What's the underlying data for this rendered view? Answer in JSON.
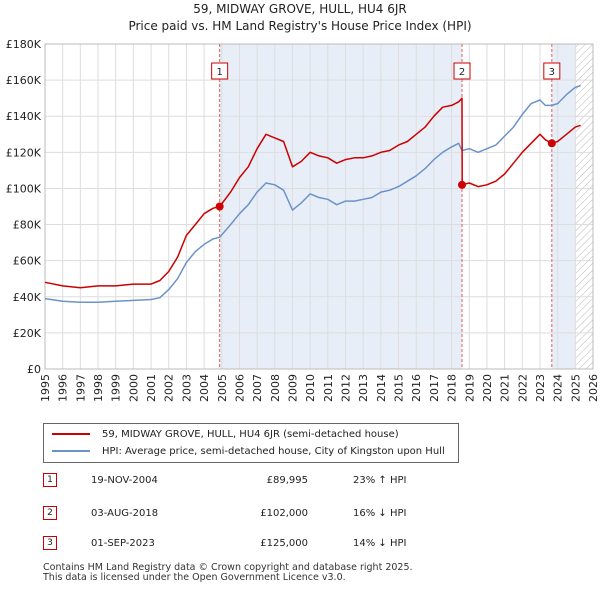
{
  "title_line1": "59, MIDWAY GROVE, HULL, HU4 6JR",
  "title_line2": "Price paid vs. HM Land Registry's House Price Index (HPI)",
  "chart_data": {
    "type": "line",
    "title": "59, MIDWAY GROVE, HULL, HU4 6JR",
    "subtitle": "Price paid vs. HM Land Registry's House Price Index (HPI)",
    "xlim": [
      1995,
      2026
    ],
    "ylim": [
      0,
      180000
    ],
    "yticks": [
      0,
      20000,
      40000,
      60000,
      80000,
      100000,
      120000,
      140000,
      160000,
      180000
    ],
    "ytick_labels": [
      "£0",
      "£20K",
      "£40K",
      "£60K",
      "£80K",
      "£100K",
      "£120K",
      "£140K",
      "£160K",
      "£180K"
    ],
    "xticks": [
      1995,
      1996,
      1997,
      1998,
      1999,
      2000,
      2001,
      2002,
      2003,
      2004,
      2005,
      2006,
      2007,
      2008,
      2009,
      2010,
      2011,
      2012,
      2013,
      2014,
      2015,
      2016,
      2017,
      2018,
      2019,
      2020,
      2021,
      2022,
      2023,
      2024,
      2025,
      2026
    ],
    "future_region_start": 2025.0,
    "grid": true,
    "series": [
      {
        "name": "59, MIDWAY GROVE, HULL, HU4 6JR (semi-detached house)",
        "color": "#cc0000",
        "x": [
          1995.0,
          1996.0,
          1997.0,
          1998.0,
          1999.0,
          2000.0,
          2001.0,
          2001.5,
          2002.0,
          2002.5,
          2003.0,
          2003.5,
          2004.0,
          2004.5,
          2004.88,
          2005.5,
          2006.0,
          2006.5,
          2007.0,
          2007.5,
          2008.0,
          2008.5,
          2009.0,
          2009.5,
          2010.0,
          2010.5,
          2011.0,
          2011.5,
          2012.0,
          2012.5,
          2013.0,
          2013.5,
          2014.0,
          2014.5,
          2015.0,
          2015.5,
          2016.0,
          2016.5,
          2017.0,
          2017.5,
          2018.0,
          2018.4,
          2018.59,
          2018.6,
          2019.0,
          2019.5,
          2020.0,
          2020.5,
          2021.0,
          2021.5,
          2022.0,
          2022.5,
          2023.0,
          2023.3,
          2023.67,
          2024.0,
          2024.5,
          2025.0,
          2025.3
        ],
        "values": [
          48000,
          46000,
          45000,
          46000,
          46000,
          47000,
          47000,
          49000,
          54000,
          62000,
          74000,
          80000,
          86000,
          89000,
          89995,
          98000,
          106000,
          112000,
          122000,
          130000,
          128000,
          126000,
          112000,
          115000,
          120000,
          118000,
          117000,
          114000,
          116000,
          117000,
          117000,
          118000,
          120000,
          121000,
          124000,
          126000,
          130000,
          134000,
          140000,
          145000,
          146000,
          148000,
          150000,
          102000,
          103000,
          101000,
          102000,
          104000,
          108000,
          114000,
          120000,
          125000,
          130000,
          127000,
          125000,
          126000,
          130000,
          134000,
          135000
        ]
      },
      {
        "name": "HPI: Average price, semi-detached house, City of Kingston upon Hull",
        "color": "#6b93c8",
        "x": [
          1995.0,
          1996.0,
          1997.0,
          1998.0,
          1999.0,
          2000.0,
          2001.0,
          2001.5,
          2002.0,
          2002.5,
          2003.0,
          2003.5,
          2004.0,
          2004.5,
          2004.88,
          2005.5,
          2006.0,
          2006.5,
          2007.0,
          2007.5,
          2008.0,
          2008.5,
          2009.0,
          2009.5,
          2010.0,
          2010.5,
          2011.0,
          2011.5,
          2012.0,
          2012.5,
          2013.0,
          2013.5,
          2014.0,
          2014.5,
          2015.0,
          2015.5,
          2016.0,
          2016.5,
          2017.0,
          2017.5,
          2018.0,
          2018.4,
          2018.59,
          2018.6,
          2019.0,
          2019.5,
          2020.0,
          2020.5,
          2021.0,
          2021.5,
          2022.0,
          2022.5,
          2023.0,
          2023.3,
          2023.67,
          2024.0,
          2024.5,
          2025.0,
          2025.3
        ],
        "values": [
          39000,
          37500,
          37000,
          37000,
          37500,
          38000,
          38500,
          39500,
          44000,
          50000,
          59000,
          65000,
          69000,
          72000,
          73000,
          80000,
          86000,
          91000,
          98000,
          103000,
          102000,
          99000,
          88000,
          92000,
          97000,
          95000,
          94000,
          91000,
          93000,
          93000,
          94000,
          95000,
          98000,
          99000,
          101000,
          104000,
          107000,
          111000,
          116000,
          120000,
          123000,
          125000,
          121000,
          121000,
          122000,
          120000,
          122000,
          124000,
          129000,
          134000,
          141000,
          147000,
          149000,
          146000,
          146000,
          147000,
          152000,
          156000,
          157000
        ]
      }
    ],
    "sales": [
      {
        "label": "1",
        "x": 2004.88,
        "value": 89995
      },
      {
        "label": "2",
        "x": 2018.59,
        "value": 102000
      },
      {
        "label": "3",
        "x": 2023.67,
        "value": 125000
      }
    ]
  },
  "legend": {
    "items": [
      {
        "label": "59, MIDWAY GROVE, HULL, HU4 6JR (semi-detached house)",
        "color": "#cc0000"
      },
      {
        "label": "HPI: Average price, semi-detached house, City of Kingston upon Hull",
        "color": "#6b93c8"
      }
    ]
  },
  "sales_table": [
    {
      "num": "1",
      "date": "19-NOV-2004",
      "price": "£89,995",
      "hpi": "23% ↑ HPI"
    },
    {
      "num": "2",
      "date": "03-AUG-2018",
      "price": "£102,000",
      "hpi": "16% ↓ HPI"
    },
    {
      "num": "3",
      "date": "01-SEP-2023",
      "price": "£125,000",
      "hpi": "14% ↓ HPI"
    }
  ],
  "footer": {
    "line1": "Contains HM Land Registry data © Crown copyright and database right 2025.",
    "line2": "This data is licensed under the Open Government Licence v3.0."
  }
}
